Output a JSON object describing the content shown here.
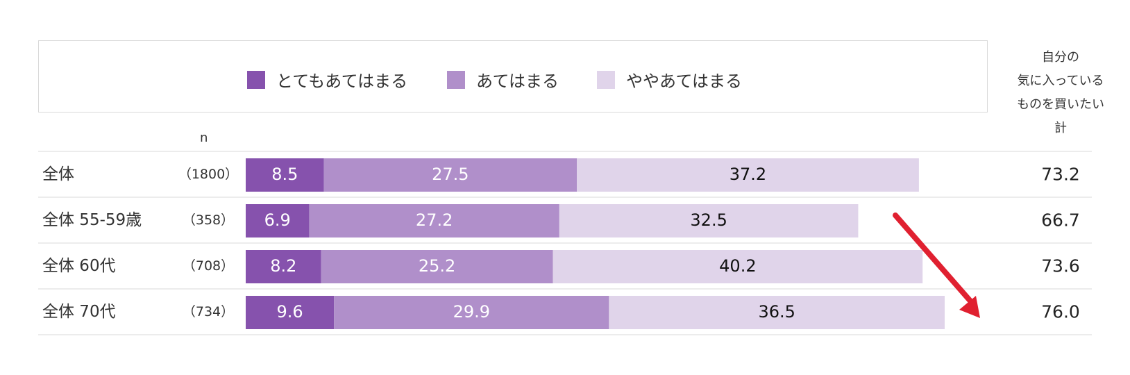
{
  "chart_data": {
    "type": "bar",
    "stacked": true,
    "orientation": "horizontal",
    "categories": [
      "全体",
      "全体 55-59歳",
      "全体 60代",
      "全体 70代"
    ],
    "n": [
      "（1800）",
      "（358）",
      "（708）",
      "（734）"
    ],
    "n_header": "n",
    "series": [
      {
        "name": "とてもあてはまる",
        "values": [
          8.5,
          6.9,
          8.2,
          9.6
        ],
        "color": "#8652ad"
      },
      {
        "name": "あてはまる",
        "values": [
          27.5,
          27.2,
          25.2,
          29.9
        ],
        "color": "#b08fca"
      },
      {
        "name": "ややあてはまる",
        "values": [
          37.2,
          32.5,
          40.2,
          36.5
        ],
        "color": "#e0d4ea"
      }
    ],
    "total_header": [
      "自分の",
      "気に入っている",
      "ものを買いたい",
      "計"
    ],
    "totals": [
      "73.2",
      "66.7",
      "73.6",
      "76.0"
    ],
    "xlim": [
      0,
      100
    ],
    "legend_position": "top",
    "annotation": "red-arrow-increasing-trend",
    "colors": {
      "arrow": "#e02030",
      "row_divider": "#d9d9d9",
      "label_light": "#ffffff",
      "label_dark": "#111111"
    }
  }
}
